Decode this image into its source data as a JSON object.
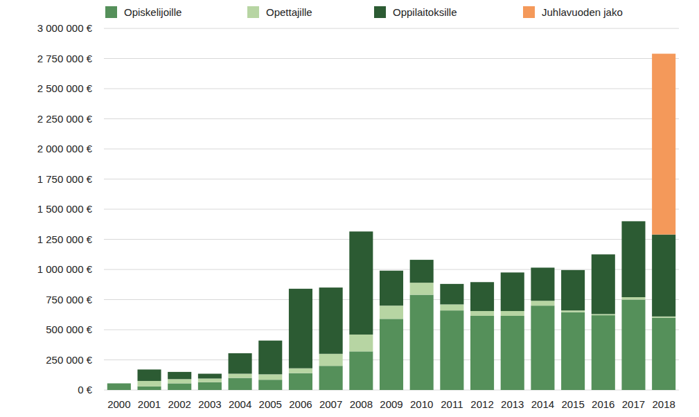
{
  "chart_data": {
    "type": "bar",
    "stacked": true,
    "grid": true,
    "legend": "top",
    "categories": [
      "2000",
      "2001",
      "2002",
      "2003",
      "2004",
      "2005",
      "2006",
      "2007",
      "2008",
      "2009",
      "2010",
      "2011",
      "2012",
      "2013",
      "2014",
      "2015",
      "2016",
      "2017",
      "2018"
    ],
    "series": [
      {
        "name": "Opiskelijoille",
        "color": "#55905a",
        "values": [
          55000,
          30000,
          55000,
          65000,
          100000,
          85000,
          140000,
          200000,
          320000,
          590000,
          790000,
          660000,
          615000,
          615000,
          700000,
          645000,
          620000,
          750000,
          600000
        ]
      },
      {
        "name": "Opettajille",
        "color": "#b7d5a3",
        "values": [
          0,
          45000,
          35000,
          30000,
          35000,
          45000,
          40000,
          100000,
          140000,
          110000,
          100000,
          50000,
          40000,
          40000,
          40000,
          15000,
          10000,
          20000,
          10000
        ]
      },
      {
        "name": "Oppilaitoksille",
        "color": "#2c5b33",
        "values": [
          0,
          95000,
          60000,
          40000,
          170000,
          280000,
          660000,
          550000,
          855000,
          290000,
          190000,
          170000,
          240000,
          320000,
          275000,
          335000,
          495000,
          630000,
          680000
        ]
      },
      {
        "name": "Juhlavuoden jako",
        "color": "#f4995a",
        "values": [
          0,
          0,
          0,
          0,
          0,
          0,
          0,
          0,
          0,
          0,
          0,
          0,
          0,
          0,
          0,
          0,
          0,
          0,
          1500000
        ]
      }
    ],
    "ylim": [
      0,
      3000000
    ],
    "yticks": [
      {
        "value": 0,
        "label": "0 €"
      },
      {
        "value": 250000,
        "label": "250 000 €"
      },
      {
        "value": 500000,
        "label": "500 000 €"
      },
      {
        "value": 750000,
        "label": "750 000 €"
      },
      {
        "value": 1000000,
        "label": "1 000 000 €"
      },
      {
        "value": 1250000,
        "label": "1 250 000 €"
      },
      {
        "value": 1500000,
        "label": "1 500 000 €"
      },
      {
        "value": 1750000,
        "label": "1 750 000 €"
      },
      {
        "value": 2000000,
        "label": "2 000 000 €"
      },
      {
        "value": 2250000,
        "label": "2 250 000 €"
      },
      {
        "value": 2500000,
        "label": "2 500 000 €"
      },
      {
        "value": 2750000,
        "label": "2 750 000 €"
      },
      {
        "value": 3000000,
        "label": "3 000 000 €"
      }
    ]
  }
}
